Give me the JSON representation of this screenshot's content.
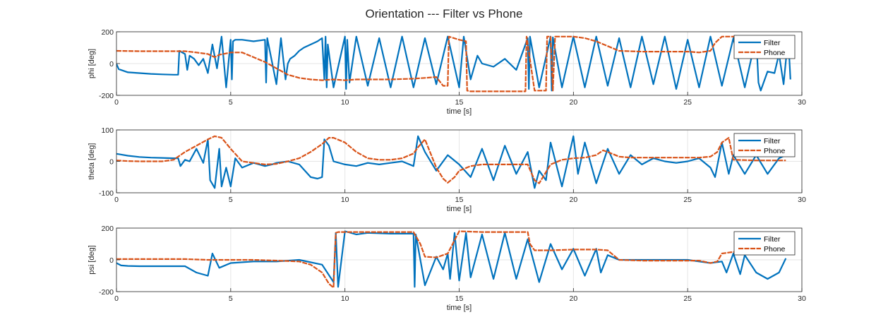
{
  "title": "Orientation --- Filter vs Phone",
  "colors": {
    "filter": "#0072BD",
    "phone": "#D95319",
    "grid": "#e6e6e6",
    "axis": "#262626"
  },
  "chart_data": [
    {
      "type": "line",
      "ylabel": "phi [deg]",
      "xlabel": "time [s]",
      "xlim": [
        0,
        30
      ],
      "ylim": [
        -200,
        200
      ],
      "xticks": [
        0,
        5,
        10,
        15,
        20,
        25,
        30
      ],
      "yticks": [
        -200,
        0,
        200
      ],
      "grid": true,
      "legend_position": "top-right",
      "series": [
        {
          "name": "Filter",
          "x": [
            0,
            0.1,
            0.5,
            1,
            1.5,
            2,
            2.5,
            2.7,
            2.75,
            3,
            3.1,
            3.2,
            3.4,
            3.6,
            3.8,
            4,
            4.2,
            4.4,
            4.6,
            4.8,
            5,
            5.05,
            5.1,
            5.2,
            5.5,
            6,
            6.5,
            6.55,
            6.6,
            7,
            7.2,
            7.4,
            7.5,
            7.6,
            7.8,
            8,
            8.2,
            8.5,
            8.8,
            9,
            9.1,
            9.15,
            9.2,
            9.25,
            9.5,
            10,
            10.05,
            10.1,
            10.2,
            10.5,
            11,
            11.5,
            12,
            12.5,
            13,
            13.5,
            14,
            14.5,
            15,
            15.2,
            15.5,
            15.8,
            16,
            16.5,
            17,
            17.5,
            18,
            18.05,
            18.1,
            18.5,
            19,
            19.05,
            19.1,
            19.5,
            20,
            20.5,
            21,
            21.5,
            22,
            22.5,
            23,
            23.5,
            24,
            24.5,
            25,
            25.5,
            26,
            26.5,
            27,
            27.5,
            28,
            28.1,
            28.2,
            28.5,
            28.8,
            29,
            29.2,
            29.4,
            29.5
          ],
          "y": [
            -2,
            -35,
            -55,
            -60,
            -65,
            -68,
            -70,
            -70,
            80,
            60,
            -40,
            50,
            30,
            -10,
            30,
            -60,
            120,
            -30,
            170,
            -150,
            150,
            -100,
            140,
            150,
            150,
            140,
            150,
            -120,
            160,
            -130,
            160,
            -100,
            0,
            30,
            50,
            80,
            100,
            120,
            140,
            160,
            -100,
            170,
            -150,
            120,
            -150,
            170,
            -160,
            150,
            -120,
            170,
            -140,
            160,
            -150,
            170,
            -150,
            160,
            -130,
            170,
            -150,
            170,
            -100,
            50,
            0,
            -20,
            30,
            -40,
            160,
            -160,
            170,
            -150,
            170,
            -170,
            165,
            -150,
            170,
            -150,
            170,
            -140,
            160,
            -150,
            170,
            -130,
            170,
            -160,
            150,
            -150,
            170,
            -140,
            160,
            -150,
            170,
            -120,
            -170,
            -50,
            -60,
            60,
            -130,
            170,
            -100
          ]
        },
        {
          "name": "Phone",
          "x": [
            0,
            1,
            2,
            2.7,
            3,
            3.5,
            4,
            4.3,
            4.5,
            5,
            5.5,
            6,
            6.5,
            7,
            7.5,
            8,
            8.5,
            9,
            9.5,
            10,
            10.5,
            11,
            12,
            13,
            13.5,
            14,
            14.3,
            14.5,
            14.55,
            15,
            15.3,
            15.35,
            15.5,
            16,
            17,
            17.9,
            17.95,
            18.3,
            18.8,
            18.85,
            19,
            19.1,
            19.2,
            20,
            20.5,
            21,
            21.5,
            22,
            23,
            24,
            25,
            25.5,
            26,
            26.2,
            26.5,
            27,
            28,
            29,
            29.3
          ],
          "y": [
            80,
            78,
            78,
            78,
            78,
            70,
            60,
            40,
            55,
            70,
            70,
            40,
            10,
            -30,
            -70,
            -90,
            -100,
            -105,
            -100,
            -105,
            -100,
            -100,
            -100,
            -95,
            -90,
            -85,
            -140,
            -140,
            170,
            150,
            140,
            -170,
            -175,
            -175,
            -175,
            -175,
            170,
            -170,
            -170,
            170,
            170,
            -170,
            170,
            170,
            160,
            140,
            110,
            80,
            75,
            75,
            75,
            70,
            80,
            130,
            170,
            170,
            170,
            170,
            170
          ]
        }
      ]
    },
    {
      "type": "line",
      "ylabel": "theta [deg]",
      "xlabel": "time [s]",
      "xlim": [
        0,
        30
      ],
      "ylim": [
        -100,
        100
      ],
      "xticks": [
        0,
        5,
        10,
        15,
        20,
        25,
        30
      ],
      "yticks": [
        -100,
        0,
        100
      ],
      "grid": true,
      "legend_position": "top-right",
      "series": [
        {
          "name": "Filter",
          "x": [
            0,
            0.5,
            1,
            1.5,
            2,
            2.5,
            2.7,
            2.8,
            3,
            3.2,
            3.5,
            3.8,
            4,
            4.1,
            4.3,
            4.5,
            4.6,
            4.8,
            5,
            5.2,
            5.5,
            6,
            6.5,
            6.8,
            7,
            7.5,
            8,
            8.5,
            8.8,
            9,
            9.1,
            9.3,
            9.5,
            10,
            10.5,
            11,
            11.5,
            12,
            12.5,
            13,
            13.2,
            13.5,
            14,
            14.5,
            15,
            15.5,
            16,
            16.5,
            17,
            17.5,
            18,
            18.3,
            18.5,
            18.8,
            19,
            19.5,
            20,
            20.2,
            20.5,
            21,
            21.5,
            22,
            22.5,
            23,
            23.5,
            24,
            24.5,
            25,
            25.5,
            26,
            26.2,
            26.5,
            26.8,
            27,
            27.5,
            28,
            28.5,
            29,
            29.3
          ],
          "y": [
            24,
            18,
            14,
            12,
            11,
            10,
            10,
            -15,
            5,
            0,
            40,
            -5,
            70,
            -60,
            -85,
            40,
            -80,
            -20,
            -80,
            10,
            -20,
            -5,
            -15,
            -10,
            -5,
            0,
            -10,
            -50,
            -55,
            -50,
            70,
            50,
            0,
            -10,
            -15,
            -5,
            -10,
            -5,
            0,
            -15,
            80,
            30,
            -30,
            20,
            -10,
            -50,
            40,
            -60,
            50,
            -40,
            30,
            -85,
            -30,
            -60,
            60,
            -80,
            80,
            -40,
            60,
            -70,
            40,
            -40,
            20,
            -10,
            10,
            0,
            -5,
            0,
            10,
            -20,
            -50,
            60,
            -40,
            20,
            -40,
            20,
            -40,
            10,
            20
          ]
        },
        {
          "name": "Phone",
          "x": [
            0,
            0.5,
            1,
            2,
            2.5,
            3,
            3.5,
            4,
            4.3,
            4.6,
            5,
            5.5,
            6,
            6.5,
            7,
            7.5,
            8,
            8.5,
            9,
            9.3,
            9.5,
            10,
            10.5,
            11,
            11.5,
            12,
            12.5,
            13,
            13.2,
            13.5,
            14,
            14.3,
            14.5,
            14.8,
            15,
            15.5,
            16,
            17,
            18,
            18.3,
            18.5,
            19,
            19.5,
            20,
            20.5,
            21,
            21.3,
            21.5,
            22,
            22.5,
            23,
            24,
            25,
            25.5,
            26,
            26.3,
            26.5,
            26.8,
            27,
            28,
            29,
            29.3
          ],
          "y": [
            3,
            1,
            0,
            0,
            5,
            30,
            50,
            70,
            80,
            75,
            40,
            0,
            -5,
            -10,
            -8,
            0,
            10,
            30,
            55,
            75,
            75,
            60,
            30,
            10,
            5,
            5,
            10,
            25,
            45,
            70,
            -20,
            -55,
            -68,
            -50,
            -30,
            -15,
            -10,
            -10,
            -10,
            -60,
            -70,
            -10,
            5,
            10,
            12,
            20,
            35,
            30,
            15,
            12,
            12,
            12,
            12,
            12,
            15,
            30,
            60,
            75,
            5,
            3,
            3,
            3
          ]
        }
      ]
    },
    {
      "type": "line",
      "ylabel": "psi [deg]",
      "xlabel": "time [s]",
      "xlim": [
        0,
        30
      ],
      "ylim": [
        -200,
        200
      ],
      "xticks": [
        0,
        5,
        10,
        15,
        20,
        25,
        30
      ],
      "yticks": [
        -200,
        0,
        200
      ],
      "grid": true,
      "legend_position": "top-right",
      "series": [
        {
          "name": "Filter",
          "x": [
            0,
            0.2,
            0.5,
            1,
            2,
            3,
            3.5,
            4,
            4.2,
            4.5,
            5,
            6,
            7,
            8,
            9,
            9.5,
            9.6,
            9.7,
            10,
            10.5,
            11,
            12,
            13,
            13.05,
            13.1,
            13.5,
            14,
            14.3,
            14.5,
            14.6,
            14.8,
            15,
            15.3,
            15.5,
            16,
            16.5,
            17,
            17.5,
            18,
            18.5,
            19,
            19.5,
            20,
            20.5,
            21,
            21.2,
            21.5,
            22,
            23,
            24,
            25,
            25.5,
            26,
            26.5,
            26.7,
            27,
            27.3,
            27.5,
            28,
            28.5,
            29,
            29.3
          ],
          "y": [
            -20,
            -35,
            -38,
            -40,
            -40,
            -40,
            -80,
            -100,
            40,
            -50,
            -20,
            -10,
            -10,
            0,
            -30,
            -140,
            170,
            -170,
            180,
            160,
            170,
            165,
            165,
            -170,
            160,
            -160,
            20,
            -60,
            40,
            -120,
            170,
            -130,
            170,
            -110,
            160,
            -120,
            170,
            -120,
            130,
            -140,
            100,
            -60,
            70,
            -100,
            70,
            -80,
            30,
            0,
            0,
            0,
            0,
            -10,
            -20,
            -10,
            -80,
            40,
            -90,
            30,
            -80,
            -120,
            -80,
            10
          ]
        },
        {
          "name": "Phone",
          "x": [
            0,
            1,
            2,
            3,
            4,
            5,
            6,
            7,
            8,
            8.5,
            9,
            9.3,
            9.5,
            9.6,
            9.7,
            10,
            11,
            12,
            13,
            13.3,
            13.5,
            14,
            14.5,
            15,
            16,
            17,
            18,
            18.1,
            18.3,
            19,
            20,
            21,
            21.5,
            22,
            23,
            24,
            25,
            25.5,
            26,
            26.3,
            26.5,
            27,
            28,
            29,
            29.3
          ],
          "y": [
            5,
            5,
            5,
            5,
            0,
            0,
            0,
            -5,
            -10,
            -30,
            -80,
            -150,
            -175,
            170,
            175,
            175,
            175,
            175,
            175,
            100,
            20,
            15,
            40,
            180,
            175,
            175,
            175,
            100,
            60,
            60,
            65,
            65,
            60,
            0,
            -5,
            -5,
            -5,
            -5,
            -20,
            -10,
            40,
            50,
            50,
            50,
            50
          ]
        }
      ]
    }
  ]
}
